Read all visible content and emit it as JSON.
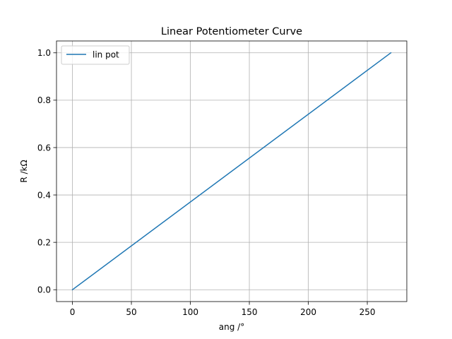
{
  "chart_data": {
    "type": "line",
    "title": "Linear Potentiometer Curve",
    "xlabel": "ang /°",
    "ylabel": "R /kΩ",
    "xlim": [
      -13.5,
      283.5
    ],
    "ylim": [
      -0.05,
      1.05
    ],
    "xticks": [
      0,
      50,
      100,
      150,
      200,
      250
    ],
    "yticks": [
      0.0,
      0.2,
      0.4,
      0.6,
      0.8,
      1.0
    ],
    "xtick_labels": [
      "0",
      "50",
      "100",
      "150",
      "200",
      "250"
    ],
    "ytick_labels": [
      "0.0",
      "0.2",
      "0.4",
      "0.6",
      "0.8",
      "1.0"
    ],
    "grid": true,
    "legend_position": "top-left",
    "series": [
      {
        "name": "lin pot",
        "color": "#1f77b4",
        "x": [
          0,
          270
        ],
        "y": [
          0.0,
          1.0
        ]
      }
    ]
  }
}
